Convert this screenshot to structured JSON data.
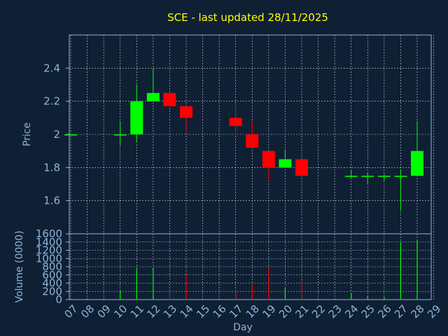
{
  "chart_data": {
    "type": "candlestick",
    "title": "SCE - last updated 28/11/2025",
    "xlabel": "Day",
    "x_ticks": [
      "07",
      "08",
      "09",
      "10",
      "11",
      "12",
      "13",
      "14",
      "15",
      "16",
      "17",
      "18",
      "19",
      "20",
      "21",
      "22",
      "23",
      "24",
      "25",
      "26",
      "27",
      "28",
      "29"
    ],
    "price_panel": {
      "ylabel": "Price",
      "ylim": [
        1.4,
        2.6
      ],
      "y_ticks": [
        "1.6",
        "1.8",
        "2",
        "2.2",
        "2.4"
      ],
      "y_tick_values": [
        1.6,
        1.8,
        2.0,
        2.2,
        2.4
      ],
      "grid": true
    },
    "volume_panel": {
      "ylabel": "Volume (0000)",
      "ylim": [
        0,
        1600
      ],
      "y_ticks": [
        "0",
        "200",
        "400",
        "600",
        "800",
        "1000",
        "1200",
        "1400",
        "1600"
      ],
      "y_tick_values": [
        0,
        200,
        400,
        600,
        800,
        1000,
        1200,
        1400,
        1600
      ],
      "grid": true
    },
    "candles": [
      {
        "day": 7,
        "open": 2.0,
        "high": 2.0,
        "low": 2.0,
        "close": 2.0,
        "volume": 0
      },
      {
        "day": 10,
        "open": 2.0,
        "high": 2.08,
        "low": 1.93,
        "close": 2.0,
        "volume": 220
      },
      {
        "day": 11,
        "open": 2.0,
        "high": 2.3,
        "low": 1.95,
        "close": 2.2,
        "volume": 750
      },
      {
        "day": 12,
        "open": 2.2,
        "high": 2.4,
        "low": 2.2,
        "close": 2.25,
        "volume": 780
      },
      {
        "day": 13,
        "open": 2.25,
        "high": 2.25,
        "low": 2.17,
        "close": 2.17,
        "volume": 150
      },
      {
        "day": 14,
        "open": 2.17,
        "high": 2.17,
        "low": 2.01,
        "close": 2.1,
        "volume": 620
      },
      {
        "day": 17,
        "open": 2.1,
        "high": 2.18,
        "low": 2.0,
        "close": 2.05,
        "volume": 220
      },
      {
        "day": 18,
        "open": 2.0,
        "high": 2.08,
        "low": 1.92,
        "close": 1.92,
        "volume": 380
      },
      {
        "day": 19,
        "open": 1.9,
        "high": 1.9,
        "low": 1.72,
        "close": 1.8,
        "volume": 780
      },
      {
        "day": 20,
        "open": 1.8,
        "high": 1.91,
        "low": 1.8,
        "close": 1.85,
        "volume": 280
      },
      {
        "day": 21,
        "open": 1.85,
        "high": 1.85,
        "low": 1.74,
        "close": 1.75,
        "volume": 470
      },
      {
        "day": 24,
        "open": 1.75,
        "high": 1.78,
        "low": 1.74,
        "close": 1.75,
        "volume": 150
      },
      {
        "day": 25,
        "open": 1.75,
        "high": 1.77,
        "low": 1.7,
        "close": 1.75,
        "volume": 90
      },
      {
        "day": 26,
        "open": 1.75,
        "high": 1.76,
        "low": 1.72,
        "close": 1.75,
        "volume": 60
      },
      {
        "day": 27,
        "open": 1.75,
        "high": 1.79,
        "low": 1.54,
        "close": 1.75,
        "volume": 1400
      },
      {
        "day": 28,
        "open": 1.75,
        "high": 2.08,
        "low": 1.75,
        "close": 1.9,
        "volume": 1450
      }
    ],
    "colors": {
      "up": "#00ff00",
      "down": "#ff0000",
      "grid": "#c8d2dc",
      "axis": "#8fb3d8",
      "title": "#ffff00",
      "background": "#0f2035"
    },
    "legend": "none"
  }
}
